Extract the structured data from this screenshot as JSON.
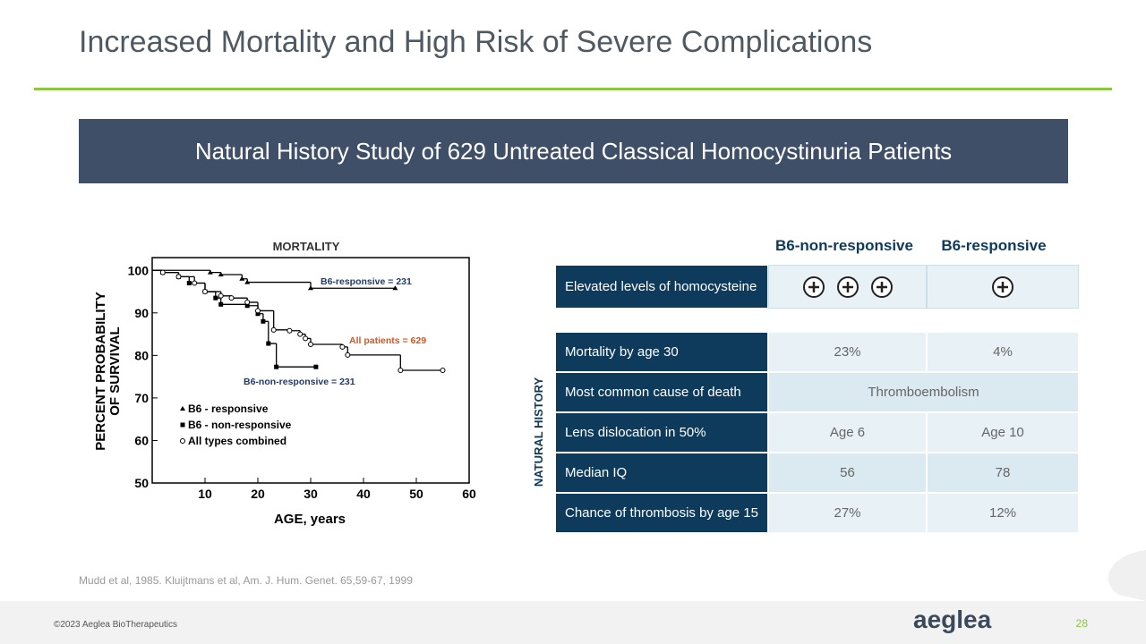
{
  "header": {
    "title": "Increased Mortality and High Risk of Severe Complications"
  },
  "banner": {
    "title": "Natural History Study of 629 Untreated Classical Homocystinuria Patients"
  },
  "chart_data": {
    "type": "line",
    "title": "MORTALITY",
    "x_label": "AGE, years",
    "y_label": [
      "PERCENT PROBABILITY",
      "OF SURVIVAL"
    ],
    "xlim": [
      0,
      60
    ],
    "ylim": [
      50,
      103
    ],
    "xticks": [
      10,
      20,
      30,
      40,
      50,
      60
    ],
    "yticks": [
      50,
      60,
      70,
      80,
      90,
      100
    ],
    "series": [
      {
        "name": "B6 - responsive",
        "color": "#000000",
        "marker": "triangle",
        "x": [
          0,
          11,
          13,
          17,
          18,
          30,
          46
        ],
        "values": [
          100,
          99.5,
          99,
          98,
          97.2,
          95.8,
          95.8
        ]
      },
      {
        "name": "B6 - non-responsive",
        "color": "#000000",
        "marker": "square",
        "x": [
          0,
          2,
          5,
          7,
          10,
          12,
          13,
          18,
          20,
          21,
          22,
          23.5,
          31
        ],
        "values": [
          100,
          99.5,
          98.5,
          97,
          95,
          93.5,
          92,
          91.7,
          89.8,
          88,
          82.8,
          77.3,
          77.3
        ]
      },
      {
        "name": "All types combined",
        "color": "#000000",
        "marker": "circle",
        "x": [
          0,
          2,
          5,
          8,
          10,
          13,
          15,
          18,
          20,
          23,
          26,
          28,
          29,
          30,
          36,
          37,
          47,
          55
        ],
        "values": [
          100,
          99.5,
          98.5,
          97,
          95,
          94,
          93.5,
          92.5,
          90.5,
          86,
          85.8,
          85,
          84,
          82.6,
          82,
          80.1,
          76.5,
          76.5
        ]
      }
    ],
    "annotations": [
      {
        "text": "B6-responsive = 231",
        "color": "#1f3b6e"
      },
      {
        "text": "All patients = 629",
        "color": "#d9541e"
      },
      {
        "text": "B6-non-responsive = 231",
        "color": "#1f3b6e"
      }
    ]
  },
  "table": {
    "columns": [
      "B6-non-responsive",
      "B6-responsive"
    ],
    "first_row": "Elevated levels of homocysteine",
    "side_label": "NATURAL HISTORY",
    "rows": [
      [
        "Mortality by age 30",
        "23%",
        "4%"
      ],
      [
        "Most common cause of death",
        "Thromboembolism"
      ],
      [
        "Lens dislocation in 50%",
        "Age 6",
        "Age 10"
      ],
      [
        "Median IQ",
        "56",
        "78"
      ],
      [
        "Chance of thrombosis by age 15",
        "27%",
        "12%"
      ]
    ]
  },
  "footer": {
    "citation": "Mudd et al, 1985. Kluijtmans et al, Am. J. Hum. Genet. 65,59-67, 1999",
    "copyright": "©2023 Aeglea BioTherapeutics",
    "logo": "aeglea",
    "page": "28"
  }
}
